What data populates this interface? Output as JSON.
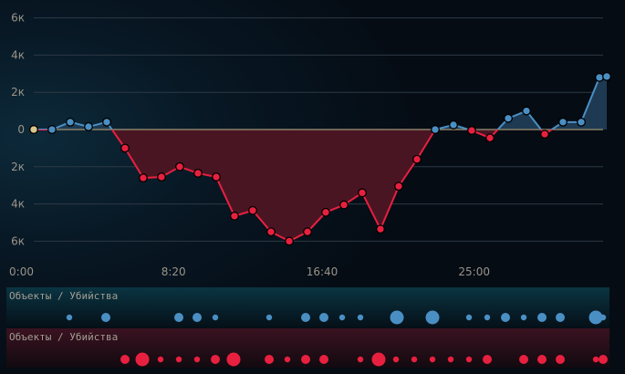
{
  "chart_data": {
    "type": "line",
    "y_tick_labels": [
      "6к",
      "4к",
      "2к",
      "0",
      "2к",
      "4к",
      "6к"
    ],
    "y_ticks": [
      6000,
      4000,
      2000,
      0,
      -2000,
      -4000,
      -6000
    ],
    "ylim": [
      -6000,
      6000
    ],
    "x_tick_labels": [
      "0:00",
      "8:20",
      "16:40",
      "25:00"
    ],
    "x_ticks_seconds": [
      0,
      500,
      1000,
      1500
    ],
    "grid": true,
    "colors": {
      "positive": "#4a8fc4",
      "negative": "#e8203f",
      "start": "#d8c68a",
      "zero_line": "#8a8068",
      "positive_fill": "#1d3a52",
      "negative_fill": "#4a1523"
    },
    "x_seconds": [
      0,
      60,
      120,
      180,
      240,
      300,
      360,
      420,
      480,
      540,
      600,
      660,
      720,
      780,
      840,
      900,
      960,
      1020,
      1080,
      1140,
      1200,
      1260,
      1320,
      1380,
      1440,
      1500,
      1560,
      1620,
      1680,
      1740,
      1800,
      1860,
      1884
    ],
    "values": [
      0,
      0,
      400,
      150,
      400,
      -1000,
      -2600,
      -2550,
      -2000,
      -2350,
      -2550,
      -4650,
      -4350,
      -5500,
      -6000,
      -5500,
      -4450,
      -4050,
      -3400,
      -5350,
      -3050,
      -1600,
      0,
      250,
      -50,
      -450,
      600,
      1000,
      -250,
      400,
      400,
      2800,
      2850
    ]
  },
  "strips": [
    {
      "label": "Объекты / Убийства",
      "color": "#4a8fc4",
      "events": [
        [
          117,
          "s"
        ],
        [
          237,
          "m"
        ],
        [
          477,
          "m"
        ],
        [
          537,
          "m"
        ],
        [
          597,
          "s"
        ],
        [
          774,
          "s"
        ],
        [
          894,
          "m"
        ],
        [
          954,
          "m"
        ],
        [
          1014,
          "s"
        ],
        [
          1074,
          "s"
        ],
        [
          1194,
          "l"
        ],
        [
          1311,
          "l"
        ],
        [
          1431,
          "s"
        ],
        [
          1491,
          "s"
        ],
        [
          1551,
          "m"
        ],
        [
          1611,
          "s"
        ],
        [
          1671,
          "m"
        ],
        [
          1731,
          "m"
        ],
        [
          1848,
          "l"
        ],
        [
          1872,
          "s"
        ]
      ]
    },
    {
      "label": "Объекты / Убийства",
      "color": "#e8203f",
      "events": [
        [
          300,
          "m"
        ],
        [
          357,
          "l"
        ],
        [
          417,
          "s"
        ],
        [
          477,
          "s"
        ],
        [
          537,
          "s"
        ],
        [
          597,
          "m"
        ],
        [
          657,
          "l"
        ],
        [
          774,
          "m"
        ],
        [
          834,
          "s"
        ],
        [
          894,
          "m"
        ],
        [
          954,
          "m"
        ],
        [
          1074,
          "s"
        ],
        [
          1134,
          "l"
        ],
        [
          1191,
          "s"
        ],
        [
          1251,
          "s"
        ],
        [
          1311,
          "s"
        ],
        [
          1371,
          "s"
        ],
        [
          1431,
          "s"
        ],
        [
          1491,
          "m"
        ],
        [
          1611,
          "m"
        ],
        [
          1671,
          "m"
        ],
        [
          1731,
          "m"
        ],
        [
          1848,
          "s"
        ],
        [
          1872,
          "m"
        ]
      ]
    }
  ]
}
